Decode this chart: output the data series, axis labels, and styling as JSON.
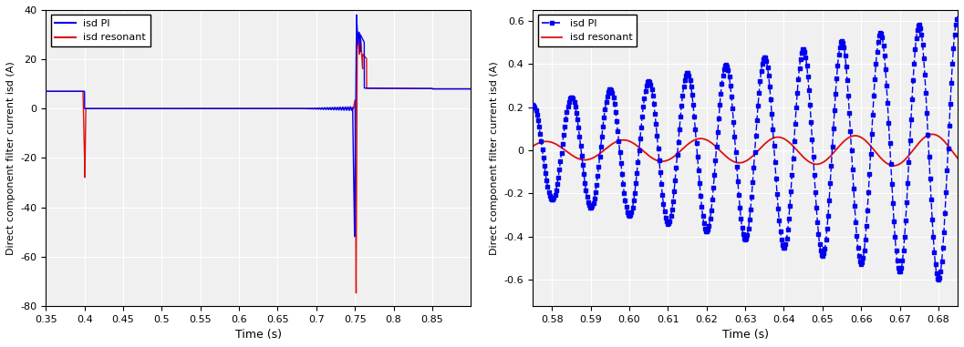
{
  "left_plot": {
    "xlim": [
      0.35,
      0.9
    ],
    "ylim": [
      -80,
      40
    ],
    "xticks": [
      0.35,
      0.4,
      0.45,
      0.5,
      0.55,
      0.6,
      0.65,
      0.7,
      0.75,
      0.8,
      0.85
    ],
    "yticks": [
      -80,
      -60,
      -40,
      -20,
      0,
      20,
      40
    ],
    "xlabel": "Time (s)",
    "ylabel": "Direct component filter current isd (A)",
    "legend_labels": [
      "isd PI",
      "isd resonant"
    ],
    "blue_color": "#0000EE",
    "red_color": "#DD1111",
    "line_width": 1.0,
    "bg_color": "#F0F0F0",
    "grid_color": "white"
  },
  "right_plot": {
    "xlim": [
      0.575,
      0.685
    ],
    "ylim": [
      -0.72,
      0.65
    ],
    "xticks": [
      0.58,
      0.59,
      0.6,
      0.61,
      0.62,
      0.63,
      0.64,
      0.65,
      0.66,
      0.67,
      0.68
    ],
    "yticks": [
      -0.6,
      -0.4,
      -0.2,
      0.0,
      0.2,
      0.4,
      0.6
    ],
    "xlabel": "Time (s)",
    "ylabel": "Direct component filter current isd (A)",
    "legend_labels": [
      "isd PI",
      "isd resonant"
    ],
    "blue_color": "#0000EE",
    "red_color": "#DD1111",
    "line_width": 1.0,
    "bg_color": "#F0F0F0",
    "grid_color": "white"
  }
}
